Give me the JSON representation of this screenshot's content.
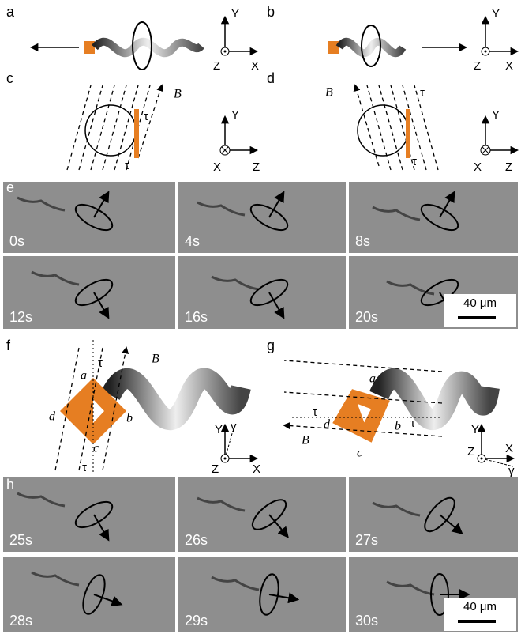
{
  "panel_a": {
    "label": "a",
    "axes": [
      "Y",
      "Z",
      "X"
    ]
  },
  "panel_b": {
    "label": "b",
    "axes": [
      "Y",
      "Z",
      "X"
    ]
  },
  "panel_c": {
    "label": "c",
    "field": "B",
    "torques": [
      "τ",
      "τ"
    ],
    "axes": [
      "Y",
      "X",
      "Z"
    ]
  },
  "panel_d": {
    "label": "d",
    "field": "B",
    "torques": [
      "τ",
      "τ"
    ],
    "axes": [
      "Y",
      "X",
      "Z"
    ]
  },
  "panel_e": {
    "label": "e",
    "frames": [
      "0s",
      "4s",
      "8s",
      "12s",
      "16s",
      "20s"
    ],
    "scale_bar": "40 μm"
  },
  "panel_f": {
    "label": "f",
    "field": "B",
    "torques": [
      "τ",
      "τ"
    ],
    "corners": [
      "a",
      "b",
      "c",
      "d"
    ],
    "angle": "γ",
    "axes": [
      "Y",
      "Z",
      "X"
    ]
  },
  "panel_g": {
    "label": "g",
    "field": "B",
    "torques": [
      "τ",
      "τ"
    ],
    "corners": [
      "a",
      "b",
      "c",
      "d"
    ],
    "angle": "γ",
    "axes": [
      "Y",
      "Z",
      "X"
    ]
  },
  "panel_h": {
    "label": "h",
    "frames": [
      "25s",
      "26s",
      "27s",
      "28s",
      "29s",
      "30s"
    ],
    "scale_bar": "40 μm"
  }
}
